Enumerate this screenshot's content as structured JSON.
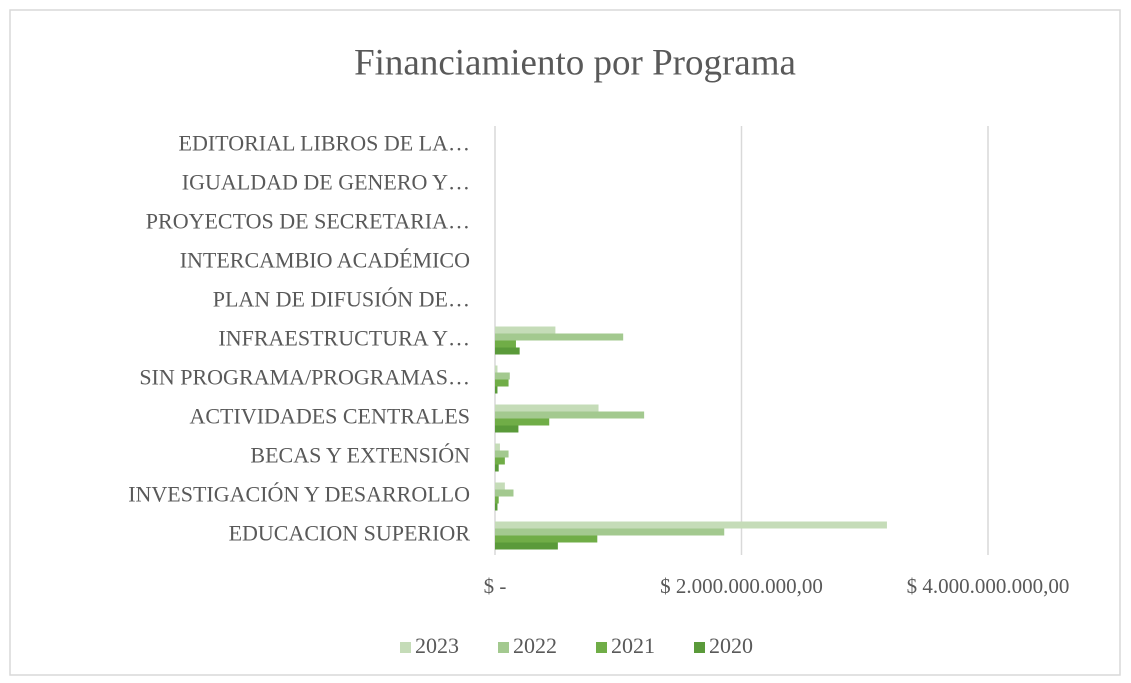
{
  "chart_data": {
    "type": "hbar",
    "title": "Financiamiento  por Programa",
    "categories": [
      "EDITORIAL LIBROS DE LA…",
      "IGUALDAD DE GENERO Y…",
      "PROYECTOS DE SECRETARIA…",
      "INTERCAMBIO ACADÉMICO",
      "PLAN DE DIFUSIÓN DE…",
      "INFRAESTRUCTURA Y…",
      "SIN PROGRAMA/PROGRAMAS…",
      "ACTIVIDADES CENTRALES",
      "BECAS Y EXTENSIÓN",
      "INVESTIGACIÓN Y DESARROLLO",
      "EDUCACION SUPERIOR"
    ],
    "series": [
      {
        "name": "2023",
        "color": "#c5dcb8",
        "values": [
          0,
          0,
          0,
          0,
          0,
          490000000,
          20000000,
          840000000,
          40000000,
          80000000,
          3180000000
        ]
      },
      {
        "name": "2022",
        "color": "#a3c98f",
        "values": [
          0,
          0,
          0,
          0,
          0,
          1040000000,
          120000000,
          1210000000,
          110000000,
          150000000,
          1860000000
        ]
      },
      {
        "name": "2021",
        "color": "#70ad47",
        "values": [
          0,
          0,
          0,
          0,
          0,
          170000000,
          110000000,
          440000000,
          80000000,
          30000000,
          830000000
        ]
      },
      {
        "name": "2020",
        "color": "#5a9a3a",
        "values": [
          0,
          0,
          0,
          0,
          0,
          200000000,
          20000000,
          190000000,
          30000000,
          20000000,
          510000000
        ]
      }
    ],
    "xlim": [
      0,
      4000000000
    ],
    "xticks": [
      {
        "value": 0,
        "label": "$ -"
      },
      {
        "value": 2000000000,
        "label": "$ 2.000.000.000,00"
      },
      {
        "value": 4000000000,
        "label": "$ 4.000.000.000,00"
      }
    ],
    "grid": true,
    "legend": "bottom"
  }
}
